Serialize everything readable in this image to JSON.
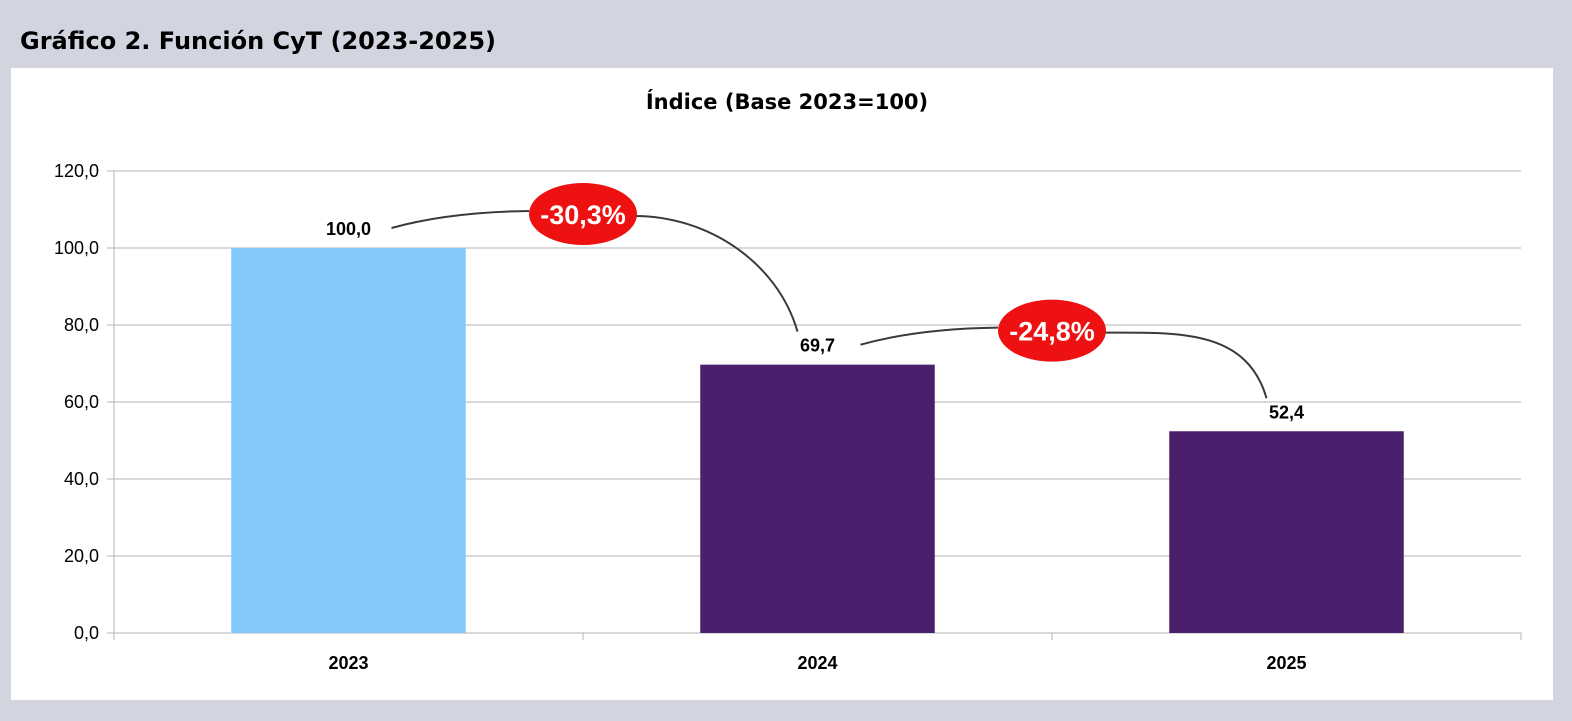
{
  "header": {
    "title": "Gráfico 2. Función CyT (2023-2025)"
  },
  "chart_data": {
    "type": "bar",
    "title": "Índice (Base 2023=100)",
    "xlabel": "",
    "ylabel": "",
    "categories": [
      "2023",
      "2024",
      "2025"
    ],
    "values": [
      100.0,
      69.7,
      52.4
    ],
    "value_labels": [
      "100,0",
      "69,7",
      "52,4"
    ],
    "bar_colors": [
      "#84c9fb",
      "#4a1f6c"
    ],
    "ylim": [
      0,
      120
    ],
    "yticks": [
      0,
      20,
      40,
      60,
      80,
      100,
      120
    ],
    "ytick_labels": [
      "0,0",
      "20,0",
      "40,0",
      "60,0",
      "80,0",
      "100,0",
      "120,0"
    ],
    "grid": true,
    "legend": "none",
    "annotations": [
      {
        "label": "-30,3%",
        "from": "2023",
        "to": "2024",
        "color": "#ee1111"
      },
      {
        "label": "-24,8%",
        "from": "2024",
        "to": "2025",
        "color": "#ee1111"
      }
    ]
  }
}
